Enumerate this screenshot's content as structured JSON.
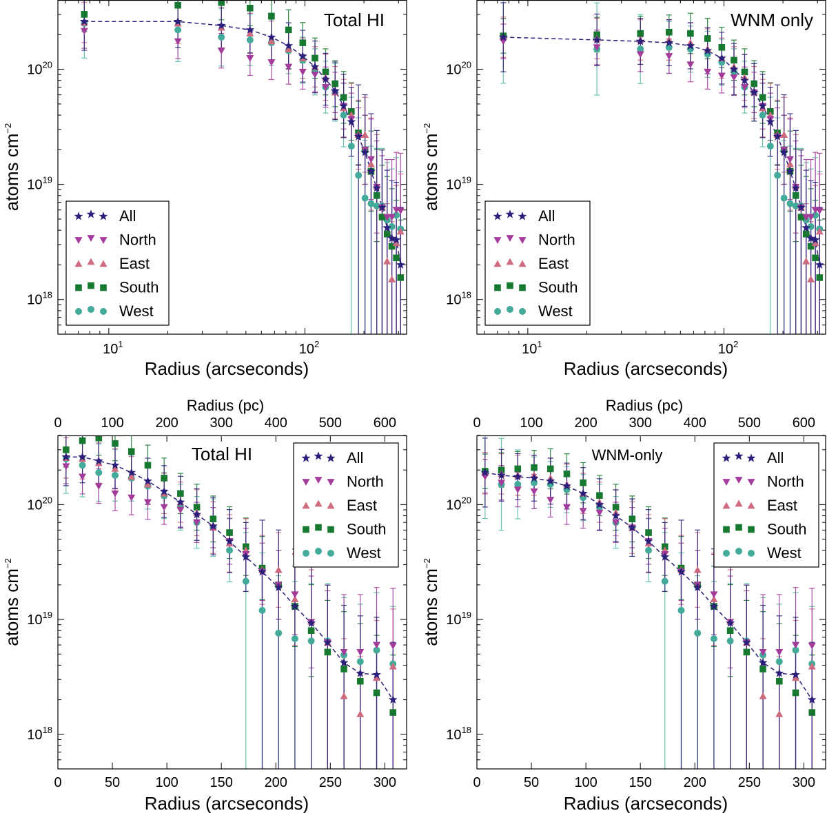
{
  "colors": {
    "All": "#2a1f7a",
    "North": "#a43c9c",
    "East": "#cf6b7f",
    "South": "#17792f",
    "West": "#44aa99",
    "West_error": "#55bba8"
  },
  "series_order": [
    "All",
    "North",
    "East",
    "South",
    "West"
  ],
  "markers": {
    "All": "star",
    "North": "triangle-down",
    "East": "triangle-up",
    "South": "square",
    "West": "circle"
  },
  "chart_data": [
    {
      "id": "total-hi-log",
      "type": "scatter",
      "title": "Total HI",
      "xscale": "log",
      "yscale": "log",
      "xlim": [
        5.5,
        330
      ],
      "ylim": [
        5e+17,
        4e+20
      ],
      "xlabel": "Radius (arcseconds)",
      "ylabel": "atoms cm",
      "ylabel_sup": "−2",
      "xticks": [
        {
          "value": 10,
          "base": "10",
          "exp": "1"
        },
        {
          "value": 100,
          "base": "10",
          "exp": "2"
        }
      ],
      "yticks": [
        {
          "value": 1e+18,
          "base": "10",
          "exp": "18"
        },
        {
          "value": 1e+19,
          "base": "10",
          "exp": "19"
        },
        {
          "value": 1e+20,
          "base": "10",
          "exp": "20"
        }
      ],
      "legend": "lower-left",
      "radii": [
        7.5,
        22.5,
        37.5,
        52.5,
        67.5,
        82.5,
        97.5,
        112.5,
        127.5,
        142.5,
        157.5,
        172.5,
        187.5,
        202.5,
        217.5,
        232.5,
        247.5,
        262.5,
        277.5,
        292.5,
        307.5
      ],
      "series": [
        {
          "name": "All",
          "line": true,
          "values": [
            2.6e+20,
            2.6e+20,
            2.4e+20,
            2.2e+20,
            1.9e+20,
            1.6e+20,
            1.3e+20,
            1.05e+20,
            8.2e+19,
            6.5e+19,
            4.8e+19,
            3.5e+19,
            2.6e+19,
            1.9e+19,
            1.3e+19,
            9.3e+18,
            6.3e+18,
            4.2e+18,
            3.4e+18,
            3.3e+18,
            2e+18
          ],
          "errors": [
            0.5,
            0.45,
            0.4,
            0.4,
            0.4,
            0.4,
            0.45,
            0.45,
            0.45,
            0.5,
            0.55,
            0.6,
            0.9,
            1.0,
            1.0,
            1.0,
            1.0,
            1.0,
            1.0,
            1.0,
            1.0
          ]
        },
        {
          "name": "North",
          "values": [
            2.15e+20,
            1.75e+20,
            1.45e+20,
            1.25e+20,
            1.15e+20,
            1.05e+20,
            9.5e+19,
            9e+19,
            7e+19,
            6.3e+19,
            4.8e+19,
            3.7e+19,
            2.6e+19,
            2e+19,
            1.65e+19,
            9.5e+18,
            6.3e+18,
            5.2e+18,
            5.2e+18,
            6e+18,
            5.9e+18
          ],
          "errors": [
            0.3,
            0.3,
            0.3,
            0.3,
            0.3,
            0.3,
            0.3,
            0.3,
            0.35,
            0.35,
            0.4,
            0.45,
            0.5,
            0.6,
            0.7,
            0.8,
            0.9,
            1.0,
            1.0,
            1.0,
            1.0
          ]
        },
        {
          "name": "East",
          "values": [
            2.55e+20,
            2.5e+20,
            2.3e+20,
            2.05e+20,
            1.75e+20,
            1.5e+20,
            1.25e+20,
            1.05e+20,
            8.5e+19,
            6.3e+19,
            4.6e+19,
            4e+19,
            2.7e+19,
            2.7e+19,
            1.5e+19,
            9.6e+18,
            6.3e+18,
            2.15e+18,
            1.5e+18,
            3.1e+18,
            3.9e+18
          ],
          "errors": [
            0.35,
            0.35,
            0.35,
            0.35,
            0.35,
            0.35,
            0.35,
            0.35,
            0.4,
            0.45,
            0.5,
            0.55,
            0.6,
            0.65,
            0.8,
            0.9,
            1.0,
            1.0,
            1.0,
            1.0,
            1.0
          ]
        },
        {
          "name": "South",
          "values": [
            3e+20,
            3.6e+20,
            3.8e+20,
            3.4e+20,
            2.9e+20,
            2.2e+20,
            1.7e+20,
            1.25e+20,
            9.5e+19,
            7.5e+19,
            5.7e+19,
            4.3e+19,
            2.8e+19,
            2e+19,
            1.3e+19,
            8e+18,
            5.2e+18,
            3.7e+18,
            2.9e+18,
            2.3e+18,
            1.55e+18
          ],
          "errors": [
            0.3,
            0.3,
            0.3,
            0.3,
            0.35,
            0.35,
            0.35,
            0.35,
            0.4,
            0.4,
            0.45,
            0.5,
            0.55,
            0.6,
            0.7,
            0.8,
            0.9,
            1.0,
            1.0,
            1.0,
            1.0
          ]
        },
        {
          "name": "West",
          "values": [
            2.5e+20,
            2.2e+20,
            1.9e+20,
            1.8e+20,
            1.7e+20,
            1.45e+20,
            1.2e+20,
            9.5e+19,
            7e+19,
            6.3e+19,
            4e+19,
            2.15e+19,
            1.2e+19,
            7.6e+18,
            6.8e+18,
            6.5e+18,
            6.5e+18,
            4.9e+18,
            4.3e+18,
            5.4e+18,
            4.1e+18
          ],
          "errors": [
            0.6,
            0.55,
            0.5,
            0.45,
            0.4,
            0.4,
            0.4,
            0.4,
            0.45,
            0.5,
            0.55,
            0.85,
            1.0,
            1.0,
            1.0,
            1.0,
            1.0,
            1.0,
            1.0,
            1.0,
            1.0
          ]
        }
      ]
    },
    {
      "id": "wnm-only-log",
      "type": "scatter",
      "title": "WNM only",
      "xscale": "log",
      "yscale": "log",
      "xlim": [
        5.5,
        330
      ],
      "ylim": [
        5e+17,
        4e+20
      ],
      "xlabel": "Radius (arcseconds)",
      "ylabel": "atoms cm",
      "ylabel_sup": "−2",
      "xticks": [
        {
          "value": 10,
          "base": "10",
          "exp": "1"
        },
        {
          "value": 100,
          "base": "10",
          "exp": "2"
        }
      ],
      "yticks": [
        {
          "value": 1e+18,
          "base": "10",
          "exp": "18"
        },
        {
          "value": 1e+19,
          "base": "10",
          "exp": "19"
        },
        {
          "value": 1e+20,
          "base": "10",
          "exp": "20"
        }
      ],
      "legend": "lower-left",
      "radii": [
        7.5,
        22.5,
        37.5,
        52.5,
        67.5,
        82.5,
        97.5,
        112.5,
        127.5,
        142.5,
        157.5,
        172.5,
        187.5,
        202.5,
        217.5,
        232.5,
        247.5,
        262.5,
        277.5,
        292.5,
        307.5
      ],
      "series": [
        {
          "name": "All",
          "line": true,
          "values": [
            1.9e+20,
            1.8e+20,
            1.75e+20,
            1.7e+20,
            1.6e+20,
            1.45e+20,
            1.25e+20,
            1e+20,
            8e+19,
            6.3e+19,
            4.8e+19,
            3.5e+19,
            2.6e+19,
            1.9e+19,
            1.3e+19,
            9.3e+18,
            6.3e+18,
            4.2e+18,
            3.4e+18,
            3.3e+18,
            2e+18
          ],
          "errors": [
            0.6,
            0.45,
            0.4,
            0.4,
            0.4,
            0.4,
            0.45,
            0.45,
            0.45,
            0.5,
            0.55,
            0.6,
            0.9,
            1.0,
            1.0,
            1.0,
            1.0,
            1.0,
            1.0,
            1.0,
            1.0
          ]
        },
        {
          "name": "North",
          "values": [
            1.75e+20,
            1.55e+20,
            1.35e+20,
            1.3e+20,
            1.1e+20,
            9.5e+19,
            8.8e+19,
            8.5e+19,
            7e+19,
            6.3e+19,
            4.8e+19,
            3.7e+19,
            2.6e+19,
            2e+19,
            1.65e+19,
            9.5e+18,
            6.3e+18,
            5.2e+18,
            5.2e+18,
            6e+18,
            5.9e+18
          ],
          "errors": [
            0.3,
            0.3,
            0.3,
            0.3,
            0.3,
            0.3,
            0.3,
            0.3,
            0.35,
            0.35,
            0.4,
            0.45,
            0.5,
            0.6,
            0.7,
            0.8,
            0.9,
            1.0,
            1.0,
            1.0,
            1.0
          ]
        },
        {
          "name": "East",
          "values": [
            1.9e+20,
            1.85e+20,
            1.8e+20,
            1.8e+20,
            1.7e+20,
            1.5e+20,
            1.25e+20,
            1.05e+20,
            8.5e+19,
            6.3e+19,
            4.6e+19,
            4e+19,
            2.7e+19,
            2.7e+19,
            1.5e+19,
            9.6e+18,
            6.3e+18,
            2.15e+18,
            1.5e+18,
            3.1e+18,
            3.9e+18
          ],
          "errors": [
            0.35,
            0.35,
            0.35,
            0.35,
            0.35,
            0.35,
            0.35,
            0.35,
            0.4,
            0.45,
            0.5,
            0.55,
            0.6,
            0.65,
            0.8,
            0.9,
            1.0,
            1.0,
            1.0,
            1.0,
            1.0
          ]
        },
        {
          "name": "South",
          "values": [
            1.95e+20,
            2e+20,
            2.05e+20,
            2.1e+20,
            2.05e+20,
            1.85e+20,
            1.55e+20,
            1.2e+20,
            9.5e+19,
            7.5e+19,
            5.7e+19,
            4.3e+19,
            2.8e+19,
            2e+19,
            1.3e+19,
            8e+18,
            5.2e+18,
            3.7e+18,
            2.9e+18,
            2.3e+18,
            1.55e+18
          ],
          "errors": [
            0.3,
            0.3,
            0.3,
            0.3,
            0.35,
            0.35,
            0.35,
            0.35,
            0.4,
            0.4,
            0.45,
            0.5,
            0.55,
            0.6,
            0.7,
            0.8,
            0.9,
            1.0,
            1.0,
            1.0,
            1.0
          ]
        },
        {
          "name": "West",
          "values": [
            1.9e+20,
            1.5e+20,
            1.5e+20,
            1.55e+20,
            1.5e+20,
            1.35e+20,
            1.15e+20,
            9.5e+19,
            7e+19,
            6.3e+19,
            4e+19,
            2.15e+19,
            1.2e+19,
            7.6e+18,
            6.8e+18,
            6.5e+18,
            6.5e+18,
            4.9e+18,
            4.3e+18,
            5.4e+18,
            4.1e+18
          ],
          "errors": [
            0.8,
            0.8,
            0.6,
            0.45,
            0.4,
            0.4,
            0.4,
            0.4,
            0.45,
            0.5,
            0.55,
            0.85,
            1.0,
            1.0,
            1.0,
            1.0,
            1.0,
            1.0,
            1.0,
            1.0,
            1.0
          ]
        }
      ]
    },
    {
      "id": "total-hi-linear",
      "type": "scatter",
      "title": "Total HI",
      "xscale": "linear",
      "yscale": "log",
      "xlim": [
        0,
        320
      ],
      "ylim": [
        5e+17,
        4e+20
      ],
      "xlabel": "Radius (arcseconds)",
      "ylabel": "atoms cm",
      "ylabel_sup": "−2",
      "top_xlabel": "Radius (pc)",
      "xticks": [
        {
          "value": 0,
          "label": "0"
        },
        {
          "value": 50,
          "label": "50"
        },
        {
          "value": 100,
          "label": "100"
        },
        {
          "value": 150,
          "label": "150"
        },
        {
          "value": 200,
          "label": "200"
        },
        {
          "value": 250,
          "label": "250"
        },
        {
          "value": 300,
          "label": "300"
        }
      ],
      "top_xlim": [
        0,
        640
      ],
      "top_xticks": [
        "0",
        "100",
        "200",
        "300",
        "400",
        "500",
        "600"
      ],
      "yticks": [
        {
          "value": 1e+18,
          "base": "10",
          "exp": "18"
        },
        {
          "value": 1e+19,
          "base": "10",
          "exp": "19"
        },
        {
          "value": 1e+20,
          "base": "10",
          "exp": "20"
        }
      ],
      "legend": "top-right",
      "series_from": "total-hi-log"
    },
    {
      "id": "wnm-only-linear",
      "type": "scatter",
      "title": "WNM-only",
      "xscale": "linear",
      "yscale": "log",
      "xlim": [
        0,
        320
      ],
      "ylim": [
        5e+17,
        4e+20
      ],
      "xlabel": "Radius (arcseconds)",
      "ylabel": "atoms cm",
      "ylabel_sup": "−2",
      "top_xlabel": "Radius (pc)",
      "xticks": [
        {
          "value": 0,
          "label": "0"
        },
        {
          "value": 50,
          "label": "50"
        },
        {
          "value": 100,
          "label": "100"
        },
        {
          "value": 150,
          "label": "150"
        },
        {
          "value": 200,
          "label": "200"
        },
        {
          "value": 250,
          "label": "250"
        },
        {
          "value": 300,
          "label": "300"
        }
      ],
      "top_xlim": [
        0,
        640
      ],
      "top_xticks": [
        "0",
        "100",
        "200",
        "300",
        "400",
        "500",
        "600"
      ],
      "yticks": [
        {
          "value": 1e+18,
          "base": "10",
          "exp": "18"
        },
        {
          "value": 1e+19,
          "base": "10",
          "exp": "19"
        },
        {
          "value": 1e+20,
          "base": "10",
          "exp": "20"
        }
      ],
      "legend": "top-right",
      "series_from": "wnm-only-log"
    }
  ]
}
